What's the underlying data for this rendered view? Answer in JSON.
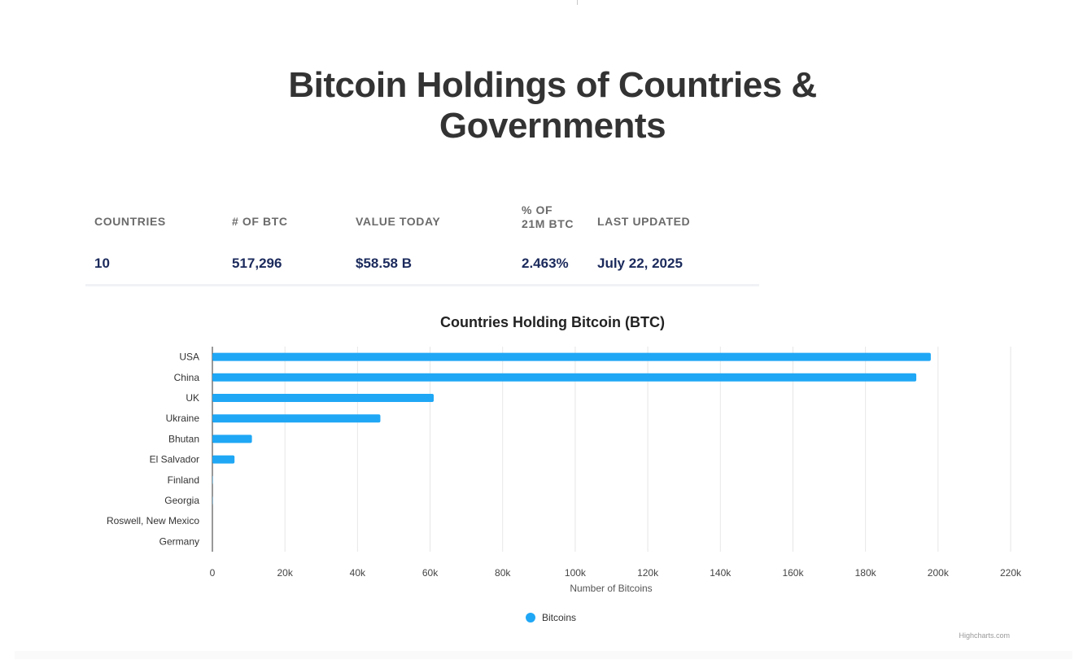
{
  "page": {
    "title_line1": "Bitcoin Holdings of Countries &",
    "title_line2": "Governments"
  },
  "stats": {
    "countries_label": "COUNTRIES",
    "countries_value": "10",
    "btc_label": "# OF BTC",
    "btc_value": "517,296",
    "value_label": "VALUE TODAY",
    "value_value": "$58.58 B",
    "pct_label_line1": "% OF",
    "pct_label_line2": "21M BTC",
    "pct_value": "2.463%",
    "updated_label": "LAST UPDATED",
    "updated_value": "July 22, 2025"
  },
  "colors": {
    "bar": "#1fa7f5",
    "title": "#333333",
    "stat_value": "#1b2a5c",
    "grid": "#e6e6e6"
  },
  "chart_data": {
    "type": "bar",
    "orientation": "horizontal",
    "title": "Countries Holding Bitcoin (BTC)",
    "categories": [
      "USA",
      "China",
      "UK",
      "Ukraine",
      "Bhutan",
      "El Salvador",
      "Finland",
      "Georgia",
      "Roswell, New Mexico",
      "Germany"
    ],
    "series": [
      {
        "name": "Bitcoins",
        "values": [
          198000,
          194000,
          61000,
          46300,
          10900,
          6100,
          90,
          66,
          0.0001,
          0
        ]
      }
    ],
    "xlabel": "Number of Bitcoins",
    "xlim": [
      0,
      220000
    ],
    "xticks": [
      0,
      20000,
      40000,
      60000,
      80000,
      100000,
      120000,
      140000,
      160000,
      180000,
      200000,
      220000
    ],
    "xtick_labels": [
      "0",
      "20k",
      "40k",
      "60k",
      "80k",
      "100k",
      "120k",
      "140k",
      "160k",
      "180k",
      "200k",
      "220k"
    ],
    "grid": true,
    "legend": "bottom-center",
    "credits": "Highcharts.com"
  }
}
